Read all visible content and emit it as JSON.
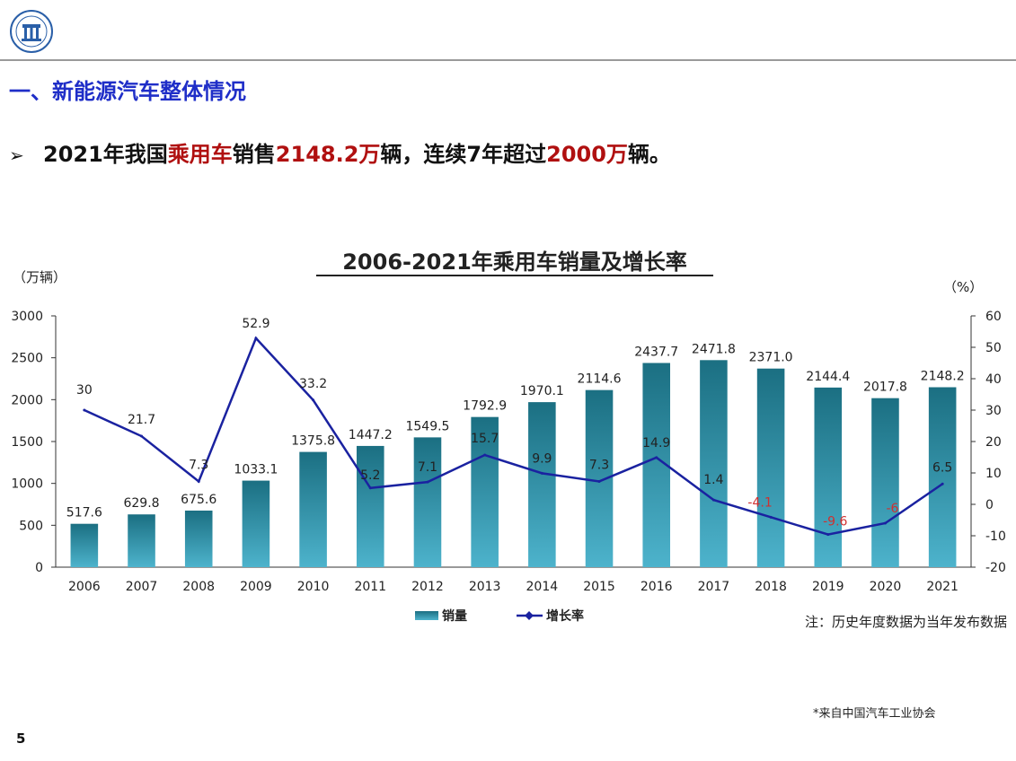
{
  "header": {
    "section_title": "一、新能源汽车整体情况",
    "bullet": {
      "marker": "➢",
      "parts": [
        {
          "text": "2021年我国",
          "highlight": false
        },
        {
          "text": "乘用车",
          "highlight": true
        },
        {
          "text": "销售",
          "highlight": false
        },
        {
          "text": "2148.2万",
          "highlight": true
        },
        {
          "text": "辆，连续7年超过",
          "highlight": false
        },
        {
          "text": "2000万",
          "highlight": true
        },
        {
          "text": "辆。",
          "highlight": false
        }
      ]
    }
  },
  "chart_data": {
    "type": "bar",
    "title": "2006-2021年乘用车销量及增长率",
    "left_axis_unit": "（万辆）",
    "right_axis_unit": "（%）",
    "categories": [
      "2006",
      "2007",
      "2008",
      "2009",
      "2010",
      "2011",
      "2012",
      "2013",
      "2014",
      "2015",
      "2016",
      "2017",
      "2018",
      "2019",
      "2020",
      "2021"
    ],
    "series": [
      {
        "name": "销量",
        "kind": "bar",
        "axis": "left",
        "values": [
          517.6,
          629.8,
          675.6,
          1033.1,
          1375.8,
          1447.2,
          1549.5,
          1792.9,
          1970.1,
          2114.6,
          2437.7,
          2471.8,
          2371.0,
          2144.4,
          2017.8,
          2148.2
        ],
        "labels": [
          "517.6",
          "629.8",
          "675.6",
          "1033.1",
          "1375.8",
          "1447.2",
          "1549.5",
          "1792.9",
          "1970.1",
          "2114.6",
          "2437.7",
          "2471.8",
          "2371.0",
          "2144.4",
          "2017.8",
          "2148.2"
        ]
      },
      {
        "name": "增长率",
        "kind": "line",
        "axis": "right",
        "values": [
          30,
          21.7,
          7.3,
          52.9,
          33.2,
          5.2,
          7.1,
          15.7,
          9.9,
          7.3,
          14.9,
          1.4,
          -4.1,
          -9.6,
          -6,
          6.5
        ],
        "labels": [
          "30",
          "21.7",
          "7.3",
          "52.9",
          "33.2",
          "5.2",
          "7.1",
          "15.7",
          "9.9",
          "7.3",
          "14.9",
          "1.4",
          "-4.1",
          "-9.6",
          "-6",
          "6.5"
        ]
      }
    ],
    "left_axis": {
      "min": 0,
      "max": 3000,
      "ticks": [
        "0",
        "500",
        "1000",
        "1500",
        "2000",
        "2500",
        "3000"
      ]
    },
    "right_axis": {
      "min": -20,
      "max": 60,
      "ticks": [
        "-20",
        "-10",
        "0",
        "10",
        "20",
        "30",
        "40",
        "50",
        "60"
      ]
    },
    "legend_position": "bottom-left",
    "note": "注：历史年度数据为当年发布数据",
    "colors": {
      "bar_top": "#1b6f82",
      "bar_bottom": "#4db3cc",
      "line": "#1a22a0",
      "negative_label": "#d03030"
    }
  },
  "footer": {
    "source": "*来自中国汽车工业协会",
    "page_number": "5"
  }
}
